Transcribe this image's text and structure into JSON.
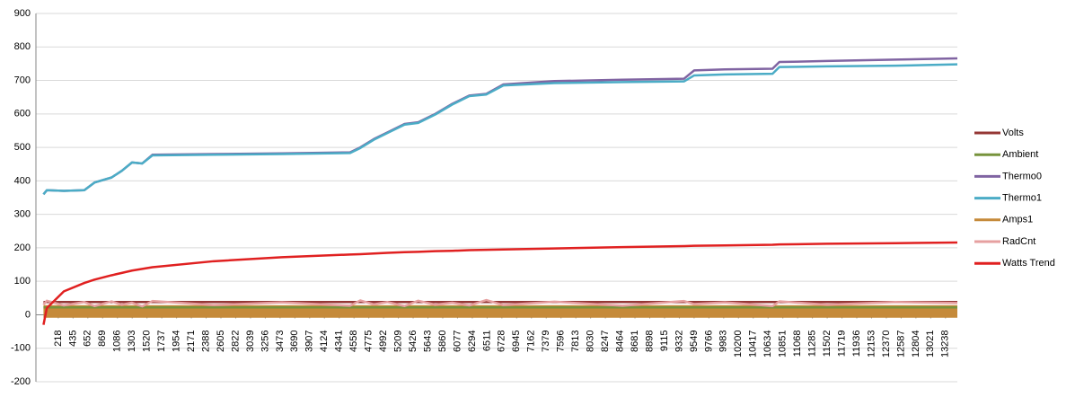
{
  "chart_data": {
    "type": "line",
    "x": [
      1,
      50,
      300,
      600,
      750,
      1000,
      1150,
      1300,
      1450,
      1600,
      2500,
      3500,
      4500,
      4650,
      4850,
      5050,
      5300,
      5500,
      5750,
      6000,
      6250,
      6500,
      6750,
      7500,
      8500,
      9400,
      9550,
      10000,
      10700,
      10800,
      11500,
      12500,
      13412
    ],
    "xlim": [
      -110,
      13412
    ],
    "xticks": [
      218,
      435,
      652,
      869,
      1086,
      1303,
      1520,
      1737,
      1954,
      2171,
      2388,
      2605,
      2822,
      3039,
      3256,
      3473,
      3690,
      3907,
      4124,
      4341,
      4558,
      4775,
      4992,
      5209,
      5426,
      5643,
      5860,
      6077,
      6294,
      6511,
      6728,
      6945,
      7162,
      7379,
      7596,
      7813,
      8030,
      8247,
      8464,
      8681,
      8898,
      9115,
      9332,
      9549,
      9766,
      9983,
      10200,
      10417,
      10634,
      10851,
      11068,
      11285,
      11502,
      11719,
      11936,
      12153,
      12370,
      12587,
      12804,
      13021,
      13238
    ],
    "ylim": [
      -200,
      900
    ],
    "yticks": [
      -200,
      -100,
      0,
      100,
      200,
      300,
      400,
      500,
      600,
      700,
      800,
      900
    ],
    "grid": true,
    "legend": "right",
    "series": [
      {
        "name": "Volts",
        "color": "#953735",
        "values": [
          38,
          38,
          38,
          38,
          38,
          38,
          38,
          38,
          38,
          38,
          38,
          38,
          38,
          38,
          38,
          38,
          38,
          38,
          38,
          38,
          38,
          38,
          38,
          38,
          38,
          38,
          38,
          38,
          38,
          38,
          38,
          38,
          38
        ]
      },
      {
        "name": "Ambient",
        "color": "#77933c",
        "values": [
          22,
          22,
          22,
          22,
          22,
          22,
          22,
          22,
          22,
          22,
          22,
          22,
          22,
          22,
          22,
          22,
          22,
          22,
          22,
          22,
          22,
          22,
          22,
          22,
          22,
          22,
          22,
          22,
          22,
          22,
          22,
          22,
          22
        ]
      },
      {
        "name": "Thermo0",
        "color": "#8064a2",
        "values": [
          360,
          372,
          370,
          372,
          395,
          410,
          430,
          455,
          452,
          478,
          480,
          482,
          485,
          500,
          525,
          545,
          570,
          575,
          600,
          630,
          655,
          660,
          688,
          698,
          702,
          705,
          730,
          733,
          735,
          755,
          758,
          762,
          766
        ]
      },
      {
        "name": "Thermo1",
        "color": "#4bacc6",
        "values": [
          360,
          372,
          370,
          372,
          395,
          410,
          430,
          455,
          452,
          476,
          478,
          480,
          483,
          498,
          523,
          543,
          568,
          573,
          598,
          628,
          653,
          658,
          685,
          692,
          695,
          697,
          715,
          718,
          720,
          740,
          742,
          744,
          748
        ]
      },
      {
        "name": "Amps1",
        "color": "#c58a3a",
        "values": [
          10,
          10,
          10,
          10,
          10,
          10,
          10,
          10,
          10,
          10,
          10,
          10,
          10,
          10,
          10,
          10,
          10,
          10,
          10,
          10,
          10,
          10,
          10,
          10,
          10,
          10,
          10,
          10,
          10,
          10,
          10,
          10,
          10
        ]
      },
      {
        "name": "RadCnt",
        "color": "#e6a0a0",
        "values": [
          30,
          42,
          28,
          38,
          26,
          40,
          30,
          36,
          25,
          41,
          29,
          37,
          27,
          43,
          31,
          38,
          26,
          42,
          30,
          36,
          28,
          44,
          29,
          39,
          27,
          41,
          32,
          37,
          26,
          40,
          30,
          38,
          35
        ]
      },
      {
        "name": "Watts Trend",
        "color": "#e02020",
        "values": [
          -30,
          20,
          70,
          95,
          105,
          118,
          125,
          132,
          137,
          142,
          160,
          172,
          180,
          181,
          183,
          185,
          187,
          188,
          190,
          191,
          193,
          194,
          195,
          198,
          202,
          205,
          206,
          207,
          209,
          210,
          212,
          214,
          216
        ]
      }
    ]
  }
}
